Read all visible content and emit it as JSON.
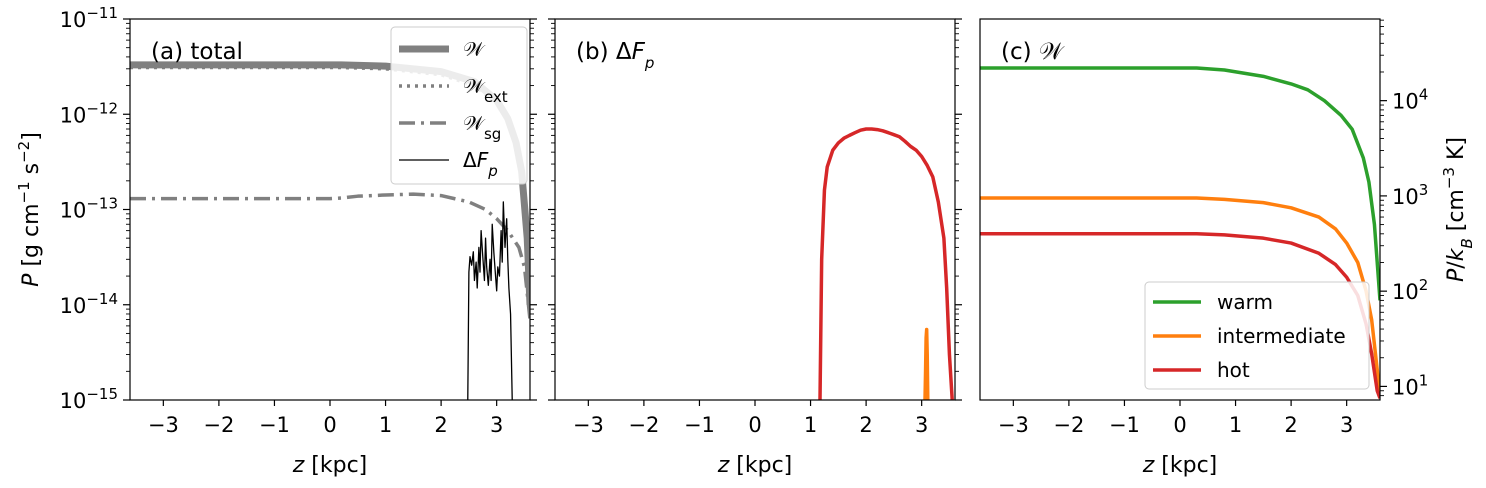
{
  "chart_data": [
    {
      "type": "line",
      "panel_label": "(a) total",
      "xlabel": "z [kpc]",
      "ylabel": "P [g cm^-1 s^-2]",
      "xlim": [
        -3.6,
        3.6
      ],
      "ylim": [
        1e-15,
        1e-11
      ],
      "yscale": "log",
      "xticks": [
        "−3",
        "−2",
        "−1",
        "0",
        "1",
        "2",
        "3"
      ],
      "yticks": [
        "10^-15",
        "10^-14",
        "10^-13",
        "10^-12",
        "10^-11"
      ],
      "legend_position": "top-right",
      "series": [
        {
          "name": "𝒲",
          "style": "solid-thick",
          "color": "#808080",
          "x": [
            -3.6,
            0.2,
            1.0,
            2.0,
            2.6,
            3.0,
            3.2,
            3.35,
            3.45,
            3.55,
            3.6
          ],
          "y": [
            3.3e-12,
            3.3e-12,
            3.2e-12,
            2.8e-12,
            2.2e-12,
            1.4e-12,
            9e-13,
            5e-13,
            2.5e-13,
            5e-14,
            1e-14
          ]
        },
        {
          "name": "𝒲ext",
          "style": "dotted",
          "color": "#808080",
          "x": [
            -3.6,
            0.2,
            1.0,
            2.0,
            2.6,
            3.0,
            3.2,
            3.35,
            3.45,
            3.55,
            3.6
          ],
          "y": [
            3.1e-12,
            3.1e-12,
            3e-12,
            2.6e-12,
            2e-12,
            1.3e-12,
            8.5e-13,
            4.6e-13,
            2.3e-13,
            4.6e-14,
            9e-15
          ]
        },
        {
          "name": "𝒲sg",
          "style": "dashdot",
          "color": "#808080",
          "x": [
            -3.6,
            -1.0,
            0.0,
            0.2,
            0.5,
            1.0,
            1.5,
            2.0,
            2.5,
            2.8,
            3.0,
            3.2,
            3.4,
            3.5,
            3.6
          ],
          "y": [
            1.3e-13,
            1.3e-13,
            1.3e-13,
            1.32e-13,
            1.38e-13,
            1.42e-13,
            1.45e-13,
            1.4e-13,
            1.2e-13,
            1e-13,
            8e-14,
            6e-14,
            4e-14,
            2.5e-14,
            7e-15
          ]
        },
        {
          "name": "ΔFp",
          "style": "solid-thin",
          "color": "#000000",
          "x": [
            2.48,
            2.5,
            2.52,
            2.55,
            2.58,
            2.6,
            2.63,
            2.65,
            2.68,
            2.7,
            2.72,
            2.75,
            2.78,
            2.8,
            2.82,
            2.85,
            2.88,
            2.9,
            2.92,
            2.95,
            2.98,
            3.0,
            3.02,
            3.05,
            3.08,
            3.1,
            3.12,
            3.15,
            3.18,
            3.2,
            3.22,
            3.25,
            3.28
          ],
          "y": [
            1e-15,
            2.2e-14,
            3.2e-14,
            2.6e-14,
            3.6e-14,
            1.8e-14,
            2.8e-14,
            1.5e-14,
            4e-14,
            2.2e-14,
            6e-14,
            3.2e-14,
            1.8e-14,
            5e-14,
            2.5e-14,
            1.6e-14,
            3e-14,
            1.8e-14,
            7e-14,
            3.5e-14,
            2e-14,
            1.4e-14,
            2.5e-14,
            2e-14,
            6e-14,
            2.8e-14,
            1.2e-13,
            4e-14,
            8e-14,
            3e-14,
            1.5e-14,
            8e-15,
            1e-15
          ]
        }
      ]
    },
    {
      "type": "line",
      "panel_label": "(b) ΔFp",
      "xlabel": "z [kpc]",
      "xlim": [
        -3.6,
        3.6
      ],
      "ylim": [
        1e-15,
        1e-11
      ],
      "yscale": "log",
      "xticks": [
        "−3",
        "−2",
        "−1",
        "0",
        "1",
        "2",
        "3"
      ],
      "series": [
        {
          "name": "hot",
          "color": "#d62728",
          "x": [
            1.17,
            1.2,
            1.25,
            1.3,
            1.4,
            1.5,
            1.6,
            1.7,
            1.8,
            1.9,
            2.0,
            2.1,
            2.2,
            2.3,
            2.4,
            2.5,
            2.6,
            2.7,
            2.8,
            2.9,
            3.0,
            3.1,
            3.2,
            3.3,
            3.4,
            3.45,
            3.5,
            3.55
          ],
          "y": [
            1e-15,
            3e-14,
            1.6e-13,
            2.8e-13,
            4.2e-13,
            5e-13,
            5.6e-13,
            6e-13,
            6.4e-13,
            6.8e-13,
            7e-13,
            7e-13,
            6.9e-13,
            6.7e-13,
            6.4e-13,
            6.1e-13,
            5.8e-13,
            5.2e-13,
            4.6e-13,
            4.2e-13,
            3.6e-13,
            2.9e-13,
            2.2e-13,
            1.2e-13,
            5e-14,
            1.5e-14,
            3e-15,
            1e-15
          ]
        },
        {
          "name": "intermediate",
          "color": "#ff7f0e",
          "x": [
            3.06,
            3.07,
            3.08,
            3.09,
            3.1,
            3.11
          ],
          "y": [
            1e-15,
            2e-15,
            4.5e-15,
            5.5e-15,
            3e-15,
            1e-15
          ]
        }
      ]
    },
    {
      "type": "line",
      "panel_label": "(c) 𝒲",
      "xlabel": "z [kpc]",
      "ylabel": "P/k_B [cm^-3 K]",
      "xlim": [
        -3.6,
        3.6
      ],
      "ylim_right": [
        7.2,
        72000
      ],
      "yscale": "log",
      "xticks": [
        "−3",
        "−2",
        "−1",
        "0",
        "1",
        "2",
        "3"
      ],
      "yticks_right": [
        "10^1",
        "10^2",
        "10^3",
        "10^4"
      ],
      "legend_position": "lower-right",
      "series": [
        {
          "name": "warm",
          "color": "#2ca02c",
          "x": [
            -3.6,
            0.3,
            0.8,
            1.5,
            2.0,
            2.3,
            2.6,
            2.9,
            3.1,
            3.3,
            3.4,
            3.5,
            3.55,
            3.6
          ],
          "y": [
            22000.0,
            22000.0,
            21000.0,
            18000.0,
            15000.0,
            13000.0,
            10000.0,
            7000.0,
            5000.0,
            2500.0,
            1400.0,
            500,
            200,
            80
          ]
        },
        {
          "name": "intermediate",
          "color": "#ff7f0e",
          "x": [
            -3.6,
            0.3,
            0.8,
            1.5,
            2.0,
            2.5,
            2.8,
            3.0,
            3.2,
            3.35,
            3.45,
            3.55,
            3.6
          ],
          "y": [
            950,
            950,
            920,
            850,
            750,
            600,
            450,
            320,
            200,
            100,
            50,
            15,
            7.5
          ]
        },
        {
          "name": "hot",
          "color": "#d62728",
          "x": [
            -3.6,
            0.3,
            0.8,
            1.5,
            2.0,
            2.5,
            2.8,
            3.0,
            3.2,
            3.35,
            3.45,
            3.55,
            3.6
          ],
          "y": [
            400,
            400,
            390,
            360,
            320,
            250,
            190,
            140,
            90,
            45,
            22,
            9,
            7.5
          ]
        }
      ]
    }
  ]
}
